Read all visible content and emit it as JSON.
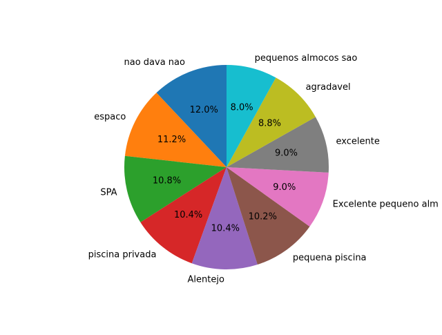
{
  "chart_data": {
    "type": "pie",
    "title": "",
    "start_angle_deg": 90,
    "direction": "counterclockwise",
    "slices": [
      {
        "label": "nao dava nao",
        "percent": 12.0,
        "pct_label": "12.0%",
        "color": "#1f77b4"
      },
      {
        "label": "espaco",
        "percent": 11.2,
        "pct_label": "11.2%",
        "color": "#ff7f0e"
      },
      {
        "label": "SPA",
        "percent": 10.8,
        "pct_label": "10.8%",
        "color": "#2ca02c"
      },
      {
        "label": "piscina privada",
        "percent": 10.4,
        "pct_label": "10.4%",
        "color": "#d62728"
      },
      {
        "label": "Alentejo",
        "percent": 10.4,
        "pct_label": "10.4%",
        "color": "#9467bd"
      },
      {
        "label": "pequena piscina",
        "percent": 10.2,
        "pct_label": "10.2%",
        "color": "#8c564b"
      },
      {
        "label": "Excelente pequeno alm",
        "percent": 9.0,
        "pct_label": "9.0%",
        "color": "#e377c2"
      },
      {
        "label": "excelente",
        "percent": 9.0,
        "pct_label": "9.0%",
        "color": "#7f7f7f"
      },
      {
        "label": "agradavel",
        "percent": 8.8,
        "pct_label": "8.8%",
        "color": "#bcbd22"
      },
      {
        "label": "pequenos almocos sao",
        "percent": 8.0,
        "pct_label": "8.0%",
        "color": "#17becf"
      }
    ]
  }
}
